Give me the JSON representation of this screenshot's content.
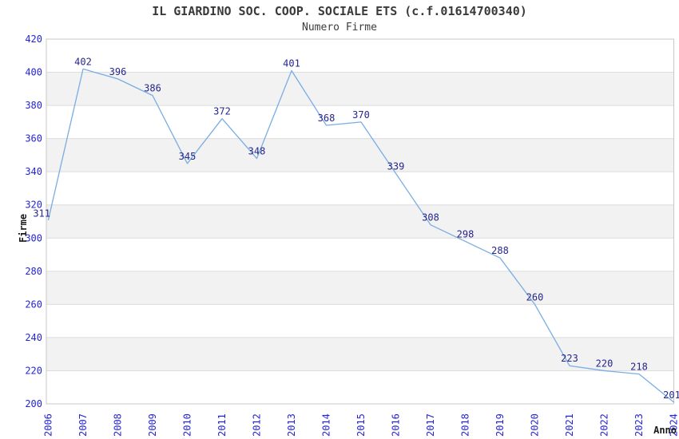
{
  "chart_data": {
    "type": "line",
    "title": "IL GIARDINO SOC. COOP. SOCIALE ETS (c.f.01614700340)",
    "subtitle": "Numero Firme",
    "xlabel": "Anno",
    "ylabel": "Firme",
    "categories": [
      "2006",
      "2007",
      "2008",
      "2009",
      "2010",
      "2011",
      "2012",
      "2013",
      "2014",
      "2015",
      "2016",
      "2017",
      "2018",
      "2019",
      "2020",
      "2021",
      "2022",
      "2023",
      "2024"
    ],
    "series": [
      {
        "name": "Numero Firme",
        "values": [
          311,
          402,
          396,
          386,
          345,
          372,
          348,
          401,
          368,
          370,
          339,
          308,
          298,
          288,
          260,
          223,
          220,
          218,
          201
        ]
      }
    ],
    "ylim": [
      200,
      420
    ],
    "ytick_step": 20,
    "grid": true,
    "legend_position": "none",
    "band_intervals": [
      [
        220,
        240
      ],
      [
        260,
        280
      ],
      [
        300,
        320
      ],
      [
        340,
        360
      ],
      [
        380,
        400
      ]
    ],
    "data_labels_visible": true
  },
  "colors": {
    "background": "#ffffff",
    "line": "#79ade2",
    "data_label": "#26268c",
    "tick_label": "#2424d6",
    "axis_title": "#1a1a1a",
    "title": "#3a3a3a",
    "subtitle": "#3c3c3c",
    "band": "#f2f2f2",
    "gridline": "#dcdcdc",
    "plot_border": "#c8c8c8"
  }
}
